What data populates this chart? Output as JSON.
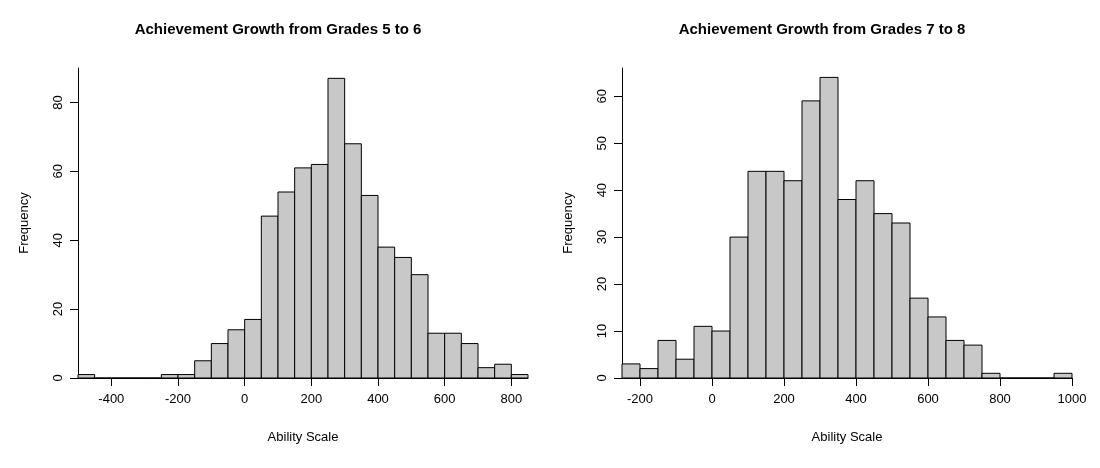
{
  "chart_data": [
    {
      "type": "histogram",
      "title": "Achievement Growth from Grades 5 to 6",
      "xlabel": "Ability Scale",
      "ylabel": "Frequency",
      "color": "#c8c8c8",
      "grid": false,
      "bins": [
        -500,
        -450,
        -400,
        -350,
        -300,
        -250,
        -200,
        -150,
        -100,
        -50,
        0,
        50,
        100,
        150,
        200,
        250,
        300,
        350,
        400,
        450,
        500,
        550,
        600,
        650,
        700,
        750,
        800,
        850
      ],
      "values": [
        1,
        0,
        0,
        0,
        0,
        1,
        1,
        5,
        10,
        14,
        17,
        47,
        54,
        61,
        62,
        87,
        68,
        53,
        38,
        35,
        30,
        13,
        13,
        10,
        3,
        4,
        1
      ],
      "xlim": [
        -500,
        850
      ],
      "xticks": [
        -400,
        -200,
        0,
        200,
        400,
        600,
        800
      ],
      "ylim": [
        0,
        90
      ],
      "yticks": [
        0,
        20,
        40,
        60,
        80
      ]
    },
    {
      "type": "histogram",
      "title": "Achievement Growth from Grades 7 to 8",
      "xlabel": "Ability Scale",
      "ylabel": "Frequency",
      "color": "#c8c8c8",
      "grid": false,
      "bins": [
        -250,
        -200,
        -150,
        -100,
        -50,
        0,
        50,
        100,
        150,
        200,
        250,
        300,
        350,
        400,
        450,
        500,
        550,
        600,
        650,
        700,
        750,
        800,
        850,
        900,
        950,
        1000
      ],
      "values": [
        3,
        2,
        8,
        4,
        11,
        10,
        30,
        44,
        44,
        42,
        59,
        64,
        38,
        42,
        35,
        33,
        17,
        13,
        8,
        7,
        1,
        0,
        0,
        0,
        1
      ],
      "xlim": [
        -250,
        1000
      ],
      "xticks": [
        -200,
        0,
        200,
        400,
        600,
        800,
        1000
      ],
      "ylim": [
        0,
        66
      ],
      "yticks": [
        0,
        10,
        20,
        30,
        40,
        50,
        60
      ]
    }
  ]
}
